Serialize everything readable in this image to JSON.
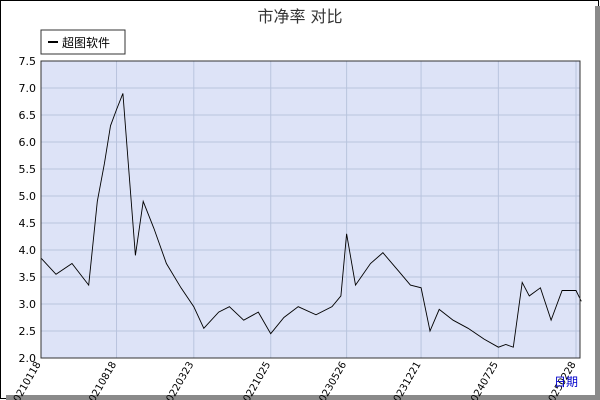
{
  "chart_data": {
    "type": "line",
    "title": "市净率  对比",
    "xlabel": "日期",
    "ylabel": "",
    "ylim": [
      2.0,
      7.5
    ],
    "yticks": [
      "2.0",
      "2.5",
      "3.0",
      "3.5",
      "4.0",
      "4.5",
      "5.0",
      "5.5",
      "6.0",
      "6.5",
      "7.0",
      "7.5"
    ],
    "xticks": [
      "20210118",
      "20210818",
      "20220323",
      "20221025",
      "20230526",
      "20231221",
      "20240725",
      "20250228"
    ],
    "grid": true,
    "legend": "top-left",
    "colors": {
      "background": "#dde3f7",
      "grid": "#b9c4de",
      "line": "#000000",
      "axis_text": "#000000",
      "xlabel": "#0000cc"
    },
    "series": [
      {
        "name": "超图软件",
        "x": [
          "20210118",
          "20210301",
          "20210415",
          "20210601",
          "20210625",
          "20210715",
          "20210801",
          "20210818",
          "20210905",
          "20210920",
          "20211010",
          "20211101",
          "20211201",
          "20220105",
          "20220215",
          "20220323",
          "20220420",
          "20220601",
          "20220701",
          "20220810",
          "20220920",
          "20221025",
          "20221201",
          "20230110",
          "20230301",
          "20230415",
          "20230510",
          "20230526",
          "20230620",
          "20230801",
          "20230905",
          "20231020",
          "20231121",
          "20231221",
          "20240115",
          "20240210",
          "20240320",
          "20240501",
          "20240615",
          "20240725",
          "20240815",
          "20240905",
          "20240930",
          "20241020",
          "20241120",
          "20241220",
          "20250120",
          "20250228",
          "20250315"
        ],
        "values": [
          3.85,
          3.55,
          3.75,
          3.35,
          4.9,
          5.6,
          6.3,
          6.6,
          6.9,
          5.6,
          3.9,
          4.9,
          4.4,
          3.75,
          3.3,
          2.95,
          2.55,
          2.85,
          2.95,
          2.7,
          2.85,
          2.45,
          2.75,
          2.95,
          2.8,
          2.95,
          3.15,
          4.3,
          3.35,
          3.75,
          3.95,
          3.6,
          3.35,
          3.3,
          2.5,
          2.9,
          2.7,
          2.55,
          2.35,
          2.2,
          2.25,
          2.2,
          3.4,
          3.15,
          3.3,
          2.7,
          3.25,
          3.25,
          3.05
        ]
      }
    ]
  }
}
